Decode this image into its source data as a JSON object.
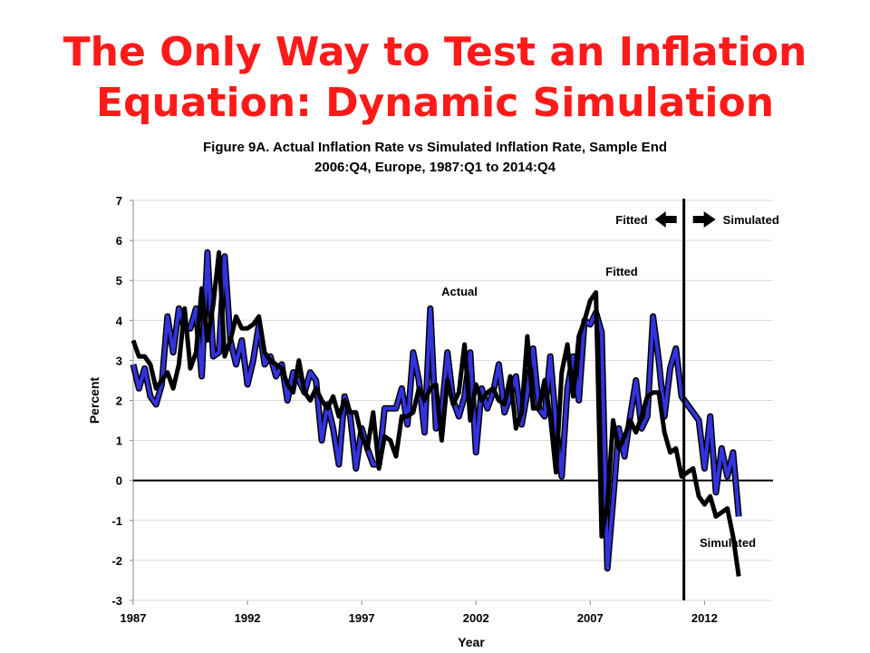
{
  "slide": {
    "title_line1": "The Only Way to Test an Inflation",
    "title_line2": "Equation:  Dynamic Simulation"
  },
  "chart_data": {
    "type": "line",
    "title_line1": "Figure 9A. Actual Inflation Rate vs Simulated Inflation Rate, Sample End",
    "title_line2": "2006:Q4, Europe, 1987:Q1 to 2014:Q4",
    "xlabel": "Year",
    "ylabel": "Percent",
    "xlim": [
      1987,
      2015
    ],
    "ylim": [
      -3,
      7
    ],
    "x_ticks": [
      1987,
      1992,
      1997,
      2002,
      2007,
      2012
    ],
    "y_ticks": [
      -3,
      -2,
      -1,
      0,
      1,
      2,
      3,
      4,
      5,
      6,
      7
    ],
    "colors": {
      "actual": "#3333dd",
      "actual_outline": "#000000",
      "fitted_simulated": "#000000",
      "title": "#ff1a1a"
    },
    "vertical_marker_x": 2011.1,
    "annotations": {
      "fitted_arrow": "Fitted",
      "simulated_arrow": "Simulated",
      "actual": "Actual",
      "fitted": "Fitted",
      "simulated": "Simulated"
    },
    "x_start": 1987.0,
    "x_step": 0.25,
    "series": [
      {
        "name": "Actual",
        "values": [
          2.9,
          2.3,
          2.8,
          2.1,
          1.9,
          2.4,
          4.1,
          3.2,
          4.3,
          3.8,
          3.8,
          4.3,
          2.6,
          5.7,
          3.1,
          3.2,
          5.6,
          3.5,
          2.9,
          3.5,
          2.4,
          3.0,
          3.9,
          2.9,
          3.1,
          2.6,
          2.9,
          2.0,
          2.7,
          2.5,
          2.2,
          2.7,
          2.5,
          1.0,
          1.9,
          1.3,
          0.4,
          2.1,
          1.6,
          0.3,
          1.3,
          0.8,
          0.4,
          0.4,
          1.8,
          1.8,
          1.8,
          2.3,
          1.4,
          3.2,
          2.5,
          1.2,
          4.3,
          1.3,
          1.7,
          3.2,
          2.0,
          1.6,
          2.1,
          3.2,
          0.7,
          2.3,
          1.8,
          2.2,
          2.9,
          1.7,
          2.1,
          2.6,
          1.4,
          2.2,
          3.3,
          1.8,
          1.6,
          3.1,
          1.4,
          0.1,
          2.3,
          3.1,
          2.0,
          4.0,
          3.9,
          4.2,
          3.7,
          -2.2,
          -0.5,
          1.3,
          0.6,
          1.6,
          2.5,
          1.3,
          1.6,
          4.1,
          3.0,
          1.6,
          2.8,
          3.3,
          2.1,
          1.9,
          1.7,
          1.5,
          0.3,
          1.6,
          -0.3,
          0.8,
          0.1,
          0.7,
          -0.9
        ]
      },
      {
        "name": "",
        "values": [
          3.5,
          3.1,
          3.1,
          2.9,
          2.3,
          2.5,
          2.7,
          2.3,
          2.9,
          4.3,
          2.8,
          3.2,
          4.8,
          3.5,
          4.4,
          5.7,
          3.1,
          3.5,
          4.1,
          3.8,
          3.8,
          3.9,
          4.1,
          3.2,
          3.0,
          2.9,
          2.8,
          2.4,
          2.2,
          3.0,
          2.2,
          2.0,
          2.3,
          2.0,
          1.8,
          2.1,
          1.6,
          2.0,
          1.7,
          1.7,
          1.1,
          0.8,
          1.7,
          0.3,
          1.1,
          1.0,
          0.6,
          1.6,
          1.6,
          1.7,
          2.3,
          2.0,
          2.3,
          2.4,
          1.0,
          2.5,
          1.9,
          2.2,
          3.4,
          1.5,
          2.4,
          2.0,
          2.2,
          2.3,
          2.0,
          1.9,
          2.6,
          1.3,
          1.7,
          3.6,
          1.8,
          1.8,
          2.5,
          1.6,
          0.2,
          2.7,
          3.4,
          2.1,
          3.6,
          4.0,
          4.5,
          4.7,
          -1.4,
          -0.6,
          1.5,
          0.8,
          1.1,
          1.5,
          1.2,
          1.6,
          2.1,
          2.2,
          2.2,
          1.2,
          0.7,
          0.8,
          0.1,
          0.2,
          0.3,
          -0.4,
          -0.6,
          -0.4,
          -0.9,
          -0.8,
          -0.7,
          -1.4,
          -2.4
        ]
      }
    ]
  }
}
